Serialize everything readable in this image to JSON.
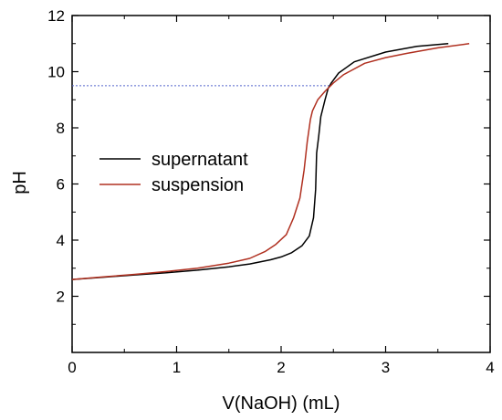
{
  "chart_data": {
    "type": "line",
    "title": "",
    "xlabel": "V(NaOH) (mL)",
    "ylabel": "pH",
    "xlim": [
      0,
      4
    ],
    "ylim": [
      0,
      12
    ],
    "xticks": [
      0,
      1,
      2,
      3,
      4
    ],
    "yticks": [
      2,
      4,
      6,
      8,
      10,
      12
    ],
    "x_tick_labels": [
      "0",
      "1",
      "2",
      "3",
      "4"
    ],
    "y_tick_labels": [
      "2",
      "4",
      "6",
      "8",
      "10",
      "12"
    ],
    "grid": false,
    "legend_position": "middle-left",
    "reference_line": {
      "y": 9.5,
      "x_from": 0,
      "x_to": 2.47,
      "style": "dotted",
      "color": "#5566cc"
    },
    "series": [
      {
        "name": "supernatant",
        "color": "#000000",
        "x": [
          0,
          0.3,
          0.6,
          0.9,
          1.2,
          1.5,
          1.7,
          1.9,
          2.0,
          2.1,
          2.2,
          2.27,
          2.31,
          2.33,
          2.34,
          2.36,
          2.38,
          2.42,
          2.45,
          2.48,
          2.55,
          2.7,
          3.0,
          3.3,
          3.6
        ],
        "y": [
          2.6,
          2.68,
          2.76,
          2.84,
          2.93,
          3.05,
          3.15,
          3.3,
          3.4,
          3.55,
          3.8,
          4.15,
          4.8,
          5.8,
          7.1,
          7.7,
          8.4,
          9.0,
          9.4,
          9.6,
          9.95,
          10.35,
          10.7,
          10.9,
          11.0
        ]
      },
      {
        "name": "suspension",
        "color": "#b03020",
        "x": [
          0,
          0.3,
          0.6,
          0.9,
          1.2,
          1.5,
          1.7,
          1.85,
          1.95,
          2.05,
          2.12,
          2.18,
          2.22,
          2.25,
          2.28,
          2.3,
          2.35,
          2.42,
          2.5,
          2.6,
          2.8,
          3.0,
          3.2,
          3.5,
          3.8
        ],
        "y": [
          2.6,
          2.69,
          2.78,
          2.88,
          3.0,
          3.18,
          3.35,
          3.6,
          3.85,
          4.2,
          4.8,
          5.5,
          6.5,
          7.5,
          8.3,
          8.6,
          9.0,
          9.3,
          9.6,
          9.9,
          10.3,
          10.5,
          10.65,
          10.85,
          11.0
        ]
      }
    ]
  }
}
